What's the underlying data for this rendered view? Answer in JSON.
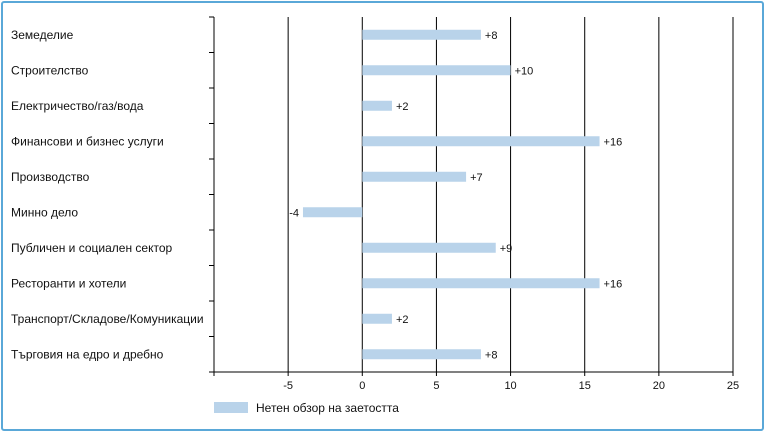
{
  "chart_data": {
    "type": "bar",
    "orientation": "horizontal",
    "categories": [
      "Земеделие",
      "Строителство",
      "Електричество/газ/вода",
      "Финансови и бизнес услуги",
      "Производство",
      "Минно дело",
      "Публичен и социален сектор",
      "Ресторанти и хотели",
      "Транспорт/Складове/Комуникации",
      "Търговия на едро и дребно"
    ],
    "values": [
      8,
      10,
      2,
      16,
      7,
      -4,
      9,
      16,
      2,
      8
    ],
    "data_labels": [
      "+8",
      "+10",
      "+2",
      "+16",
      "+7",
      "-4",
      "+9",
      "+16",
      "+2",
      "+8"
    ],
    "series": [
      {
        "name": "Нетен обзор на заетостта",
        "values": [
          8,
          10,
          2,
          16,
          7,
          -4,
          9,
          16,
          2,
          8
        ]
      }
    ],
    "xlim": [
      -10,
      25
    ],
    "x_ticks": [
      -5,
      0,
      5,
      10,
      15,
      20,
      25
    ],
    "grid": true,
    "legend_position": "bottom-left",
    "bar_color": "#b9d3ea",
    "title": "",
    "xlabel": "",
    "ylabel": ""
  },
  "colors": {
    "frame": "#5aa8d8",
    "bar": "#b9d3ea",
    "axis": "#000000"
  }
}
